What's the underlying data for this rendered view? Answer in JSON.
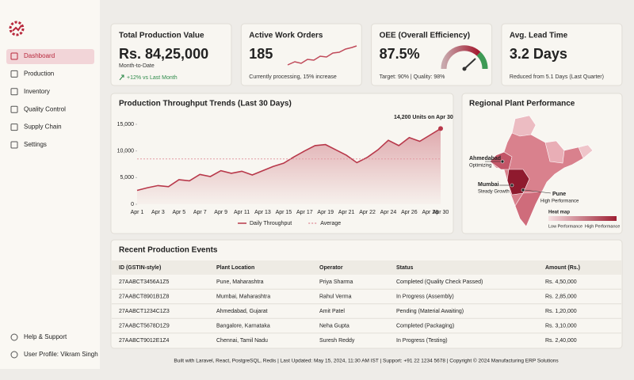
{
  "sidebar": {
    "nav": [
      "Dashboard",
      "Production",
      "Inventory",
      "Quality Control",
      "Supply Chain",
      "Settings"
    ],
    "bottom": [
      "Help & Support",
      "User Profile: Vikram Singh"
    ]
  },
  "kpis": [
    {
      "title": "Total Production Value",
      "value": "Rs. 84,25,000",
      "subtitle": "Month-to-Date",
      "change": "+12% vs Last Month"
    },
    {
      "title": "Active Work Orders",
      "value": "185",
      "subtitle": "Currently processing, 15% increase"
    },
    {
      "title": "OEE (Overall Efficiency)",
      "value": "87.5%",
      "subtitle": "Target: 90% | Quality: 98%"
    },
    {
      "title": "Avg. Lead Time",
      "value": "3.2 Days",
      "subtitle": "Reduced from 5.1 Days (Last Quarter)"
    }
  ],
  "chart_data": {
    "type": "line",
    "title": "Production Throughput Trends (Last 30 Days)",
    "annotation": "14,200 Units on Apr 30",
    "categories": [
      "Apr 1",
      null,
      "Apr 3",
      null,
      "Apr 5",
      null,
      "Apr 7",
      null,
      "Apr 9",
      null,
      "Apr 11",
      null,
      "Apr 13",
      null,
      "Apr 15",
      null,
      "Apr 17",
      null,
      "Apr 19",
      null,
      "Apr 21",
      null,
      "Apr 22",
      null,
      "Apr 24",
      null,
      "Apr 26",
      null,
      "Apr 28",
      "Apr 30"
    ],
    "series": [
      {
        "name": "Daily Throughput",
        "color": "#b8384a",
        "values": [
          2600,
          3100,
          3500,
          3300,
          4600,
          4400,
          5600,
          5200,
          6300,
          5800,
          6200,
          5500,
          6300,
          7100,
          7700,
          8900,
          10000,
          11000,
          11200,
          10200,
          9200,
          7800,
          8800,
          10200,
          12000,
          11000,
          12500,
          11800,
          13000,
          14200
        ]
      },
      {
        "name": "Average",
        "color": "#e39aa4",
        "style": "dotted",
        "values": [
          8500,
          8500,
          8500,
          8500,
          8500,
          8500,
          8500,
          8500,
          8500,
          8500,
          8500,
          8500,
          8500,
          8500,
          8500,
          8500,
          8500,
          8500,
          8500,
          8500,
          8500,
          8500,
          8500,
          8500,
          8500,
          8500,
          8500,
          8500,
          8500,
          8500
        ]
      }
    ],
    "ylim": [
      0,
      15000
    ],
    "yticks": [
      0,
      {
        "value": 5000,
        "label": "5,000"
      },
      {
        "value": 10000,
        "label": "10,000"
      },
      {
        "value": 15000,
        "label": "15,000"
      }
    ],
    "grid": false
  },
  "map": {
    "title": "Regional Plant Performance",
    "regions": [
      {
        "name": "Ahmedabad",
        "status": "Optimizing"
      },
      {
        "name": "Mumbai",
        "status": "Steady Growth"
      },
      {
        "name": "Pune",
        "status": "High Performance"
      }
    ],
    "legend": {
      "title": "Heat map",
      "low": "Low Performance",
      "high": "High Performance"
    }
  },
  "table": {
    "title": "Recent Production Events",
    "columns": [
      "ID (GSTIN-style)",
      "Plant Location",
      "Operator",
      "Status",
      "Amount (Rs.)"
    ],
    "rows": [
      [
        "27AABCT3456A1Z5",
        "Pune, Maharashtra",
        "Priya Sharma",
        "Completed (Quality Check Passed)",
        "Rs. 4,50,000"
      ],
      [
        "27AABCT8901B1Z8",
        "Mumbai, Maharashtra",
        "Rahul Verma",
        "In Progress (Assembly)",
        "Rs. 2,85,000"
      ],
      [
        "27AABCT1234C1Z3",
        "Ahmedabad, Gujarat",
        "Amit Patel",
        "Pending (Material Awaiting)",
        "Rs. 1,20,000"
      ],
      [
        "27AABCT5678D1Z9",
        "Bangalore, Karnataka",
        "Neha Gupta",
        "Completed (Packaging)",
        "Rs. 3,10,000"
      ],
      [
        "27AABCT9012E1Z4",
        "Chennai, Tamil Nadu",
        "Suresh Reddy",
        "In Progress (Testing)",
        "Rs. 2,40,000"
      ]
    ]
  },
  "footer": "Built with Laravel, React, PostgreSQL, Redis | Last Updated: May 15, 2024, 11:30 AM IST | Support: +91 22 1234 5678 | Copyright © 2024 Manufacturing ERP Solutions"
}
